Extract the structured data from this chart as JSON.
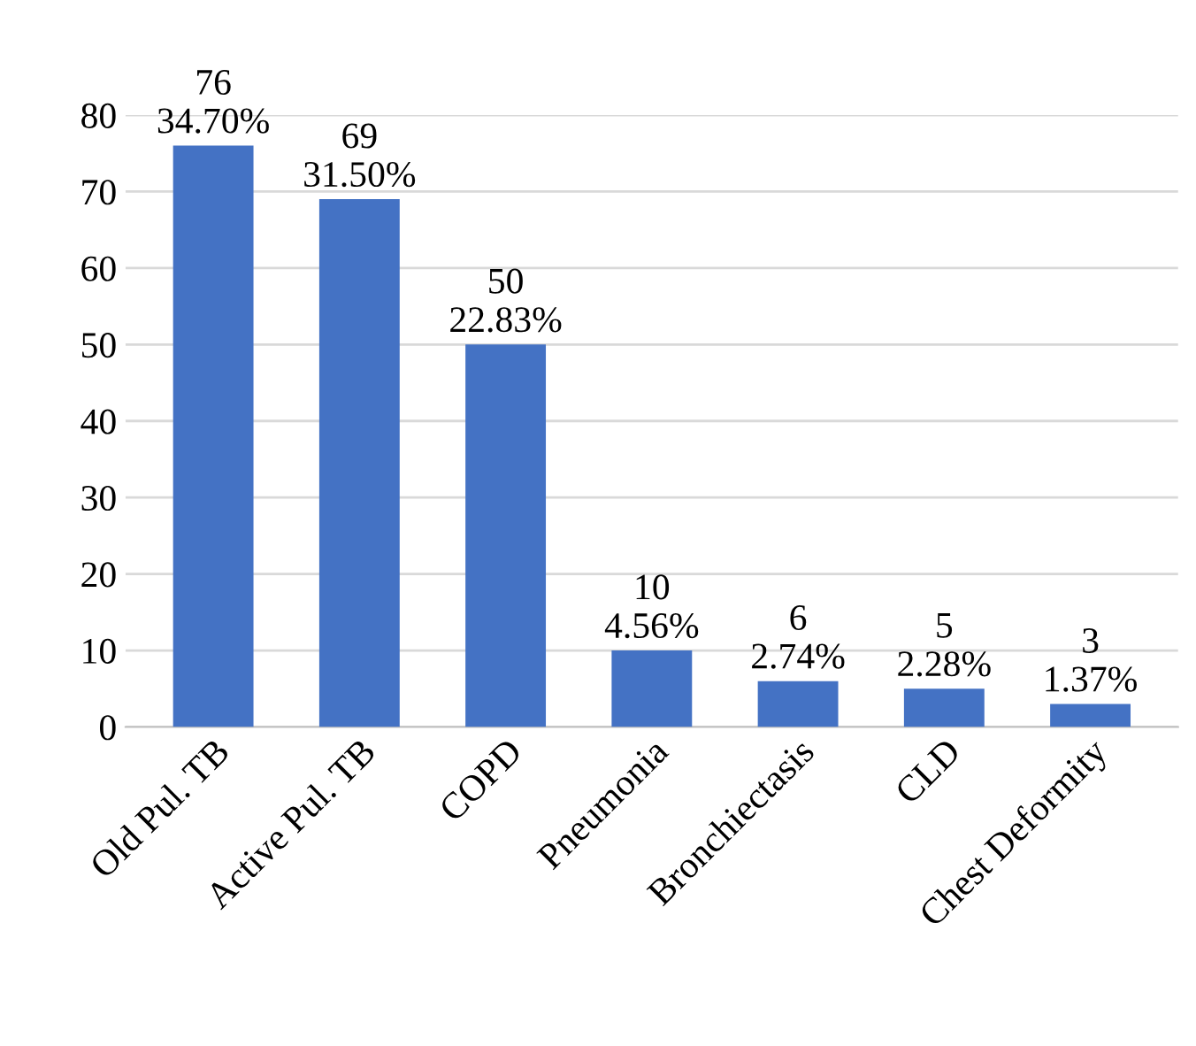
{
  "chart_data": {
    "type": "bar",
    "categories": [
      "Old Pul. TB",
      "Active Pul. TB",
      "COPD",
      "Pneumonia",
      "Bronchiectasis",
      "CLD",
      "Chest Deformity"
    ],
    "values": [
      76,
      69,
      50,
      10,
      6,
      5,
      3
    ],
    "value_labels": [
      "76\n34.70%",
      "69\n31.50%",
      "50\n22.83%",
      "10\n4.56%",
      "6\n2.74%",
      "5\n2.28%",
      "3\n1.37%"
    ],
    "color": "#4472c4",
    "ylim": [
      0,
      80
    ],
    "yticks": [
      0,
      10,
      20,
      30,
      40,
      50,
      60,
      70,
      80
    ],
    "grid": "y"
  }
}
